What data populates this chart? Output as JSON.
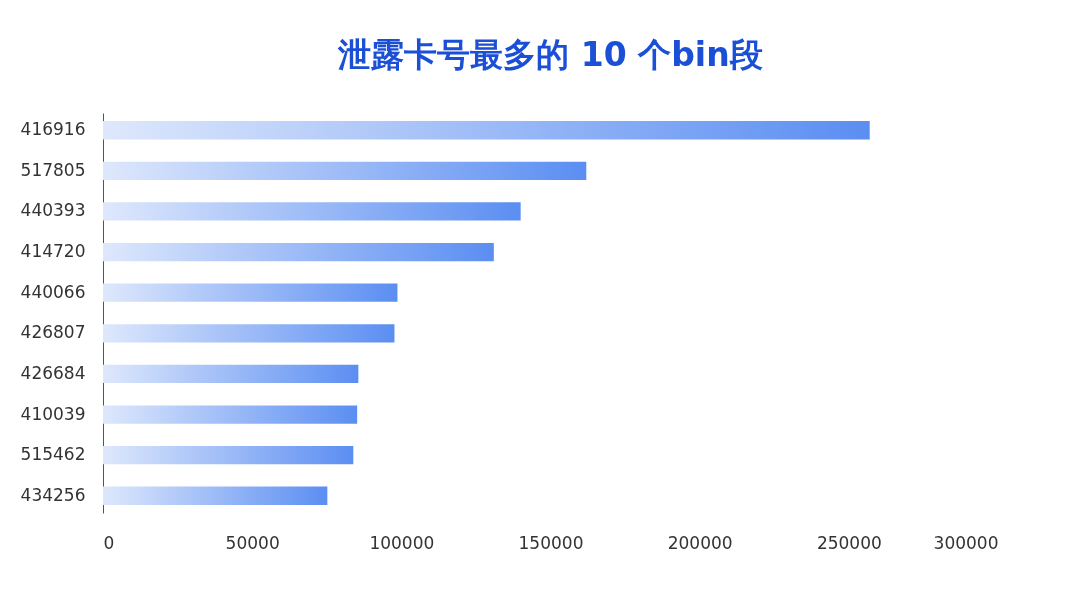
{
  "chart_data": {
    "type": "bar",
    "orientation": "horizontal",
    "title": "泄露卡号最多的 10 个bin段",
    "categories": [
      "416916",
      "517805",
      "440393",
      "414720",
      "440066",
      "426807",
      "426684",
      "410039",
      "515462",
      "434256"
    ],
    "values": [
      257000,
      162000,
      140000,
      131000,
      98700,
      97700,
      85600,
      85200,
      83900,
      75200
    ],
    "color": "#5b8ef2",
    "xlim": [
      0,
      300000
    ],
    "xticks": [
      0,
      50000,
      100000,
      150000,
      200000,
      250000,
      300000
    ],
    "grid": false
  }
}
